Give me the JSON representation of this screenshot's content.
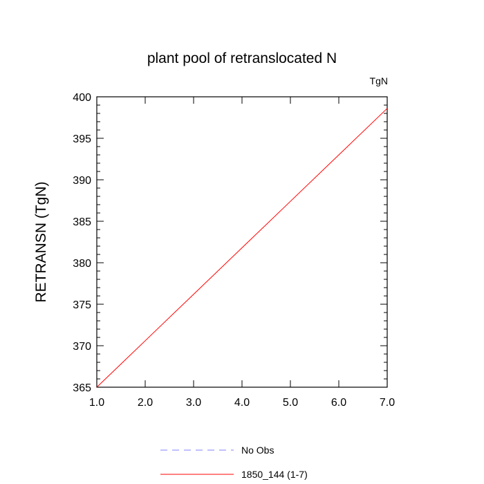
{
  "chart_data": {
    "type": "line",
    "title": "plant pool of retranslocated N",
    "units_label": "TgN",
    "xlabel": "",
    "ylabel": "RETRANSN  (TgN)",
    "xlim": [
      1.0,
      7.0
    ],
    "ylim": [
      365,
      400
    ],
    "x_ticks": [
      "1.0",
      "2.0",
      "3.0",
      "4.0",
      "5.0",
      "6.0",
      "7.0"
    ],
    "x_tick_values": [
      1,
      2,
      3,
      4,
      5,
      6,
      7
    ],
    "y_ticks": [
      "365",
      "370",
      "375",
      "380",
      "385",
      "390",
      "395",
      "400"
    ],
    "y_tick_values": [
      365,
      370,
      375,
      380,
      385,
      390,
      395,
      400
    ],
    "grid": false,
    "legend_position": "bottom",
    "series": [
      {
        "name": "1850_144 (1-7)",
        "color": "#ff0000",
        "style": "solid",
        "x": [
          1,
          2,
          3,
          4,
          5,
          6,
          7
        ],
        "y": [
          365.0,
          370.6,
          376.2,
          381.8,
          387.4,
          393.0,
          398.6
        ]
      }
    ],
    "legend": [
      {
        "label": "No Obs",
        "color": "#8080ff",
        "style": "dashed"
      },
      {
        "label": "1850_144 (1-7)",
        "color": "#ff0000",
        "style": "solid"
      }
    ]
  }
}
